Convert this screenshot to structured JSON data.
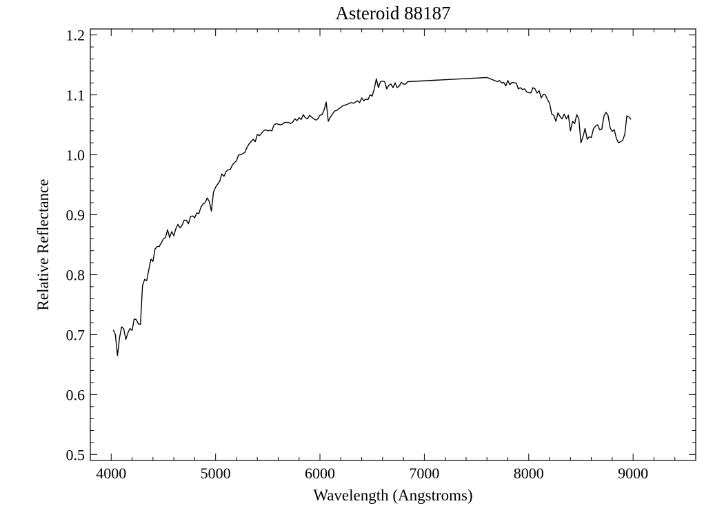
{
  "chart_data": {
    "type": "line",
    "title": "Asteroid 88187",
    "xlabel": "Wavelength (Angstroms)",
    "ylabel": "Relative Reflectance",
    "xlim": [
      3800,
      9600
    ],
    "ylim": [
      0.49,
      1.21
    ],
    "x_major_ticks": [
      4000,
      5000,
      6000,
      7000,
      8000,
      9000
    ],
    "x_tick_labels": [
      "4000",
      "5000",
      "6000",
      "7000",
      "8000",
      "9000"
    ],
    "x_minor_step": 200,
    "y_major_ticks": [
      0.5,
      0.6,
      0.7,
      0.8,
      0.9,
      1.0,
      1.1,
      1.2
    ],
    "y_tick_labels": [
      "0.5",
      "0.6",
      "0.7",
      "0.8",
      "0.9",
      "1.0",
      "1.1",
      "1.2"
    ],
    "y_minor_step": 0.02,
    "grid": false,
    "legend": "none",
    "series": [
      {
        "color": "#000000",
        "points": [
          [
            4020,
            0.708
          ],
          [
            4040,
            0.7
          ],
          [
            4060,
            0.665
          ],
          [
            4080,
            0.695
          ],
          [
            4100,
            0.713
          ],
          [
            4120,
            0.71
          ],
          [
            4140,
            0.692
          ],
          [
            4160,
            0.703
          ],
          [
            4180,
            0.71
          ],
          [
            4200,
            0.707
          ],
          [
            4220,
            0.726
          ],
          [
            4240,
            0.725
          ],
          [
            4260,
            0.718
          ],
          [
            4280,
            0.717
          ],
          [
            4300,
            0.782
          ],
          [
            4320,
            0.792
          ],
          [
            4340,
            0.79
          ],
          [
            4360,
            0.808
          ],
          [
            4380,
            0.826
          ],
          [
            4400,
            0.822
          ],
          [
            4420,
            0.843
          ],
          [
            4440,
            0.847
          ],
          [
            4460,
            0.847
          ],
          [
            4480,
            0.853
          ],
          [
            4500,
            0.86
          ],
          [
            4520,
            0.862
          ],
          [
            4540,
            0.875
          ],
          [
            4560,
            0.862
          ],
          [
            4580,
            0.872
          ],
          [
            4600,
            0.865
          ],
          [
            4620,
            0.877
          ],
          [
            4640,
            0.884
          ],
          [
            4660,
            0.878
          ],
          [
            4680,
            0.883
          ],
          [
            4700,
            0.891
          ],
          [
            4720,
            0.891
          ],
          [
            4740,
            0.885
          ],
          [
            4760,
            0.897
          ],
          [
            4780,
            0.898
          ],
          [
            4800,
            0.895
          ],
          [
            4820,
            0.903
          ],
          [
            4840,
            0.902
          ],
          [
            4860,
            0.913
          ],
          [
            4880,
            0.918
          ],
          [
            4900,
            0.92
          ],
          [
            4920,
            0.928
          ],
          [
            4940,
            0.922
          ],
          [
            4960,
            0.906
          ],
          [
            4980,
            0.938
          ],
          [
            5000,
            0.946
          ],
          [
            5020,
            0.951
          ],
          [
            5040,
            0.956
          ],
          [
            5060,
            0.968
          ],
          [
            5080,
            0.964
          ],
          [
            5100,
            0.972
          ],
          [
            5120,
            0.975
          ],
          [
            5140,
            0.975
          ],
          [
            5160,
            0.983
          ],
          [
            5180,
            0.987
          ],
          [
            5200,
            0.99
          ],
          [
            5220,
            1.0
          ],
          [
            5240,
            1.0
          ],
          [
            5260,
            1.002
          ],
          [
            5280,
            1.004
          ],
          [
            5300,
            1.012
          ],
          [
            5320,
            1.018
          ],
          [
            5340,
            1.022
          ],
          [
            5360,
            1.026
          ],
          [
            5380,
            1.022
          ],
          [
            5400,
            1.034
          ],
          [
            5420,
            1.032
          ],
          [
            5440,
            1.036
          ],
          [
            5460,
            1.04
          ],
          [
            5480,
            1.042
          ],
          [
            5500,
            1.04
          ],
          [
            5520,
            1.041
          ],
          [
            5540,
            1.04
          ],
          [
            5560,
            1.05
          ],
          [
            5580,
            1.052
          ],
          [
            5600,
            1.051
          ],
          [
            5620,
            1.05
          ],
          [
            5640,
            1.051
          ],
          [
            5660,
            1.054
          ],
          [
            5680,
            1.054
          ],
          [
            5700,
            1.054
          ],
          [
            5720,
            1.052
          ],
          [
            5740,
            1.055
          ],
          [
            5760,
            1.06
          ],
          [
            5780,
            1.057
          ],
          [
            5800,
            1.062
          ],
          [
            5820,
            1.059
          ],
          [
            5840,
            1.067
          ],
          [
            5860,
            1.062
          ],
          [
            5880,
            1.06
          ],
          [
            5900,
            1.066
          ],
          [
            5920,
            1.063
          ],
          [
            5940,
            1.06
          ],
          [
            5960,
            1.058
          ],
          [
            5980,
            1.06
          ],
          [
            6000,
            1.066
          ],
          [
            6020,
            1.067
          ],
          [
            6040,
            1.075
          ],
          [
            6060,
            1.088
          ],
          [
            6080,
            1.056
          ],
          [
            6100,
            1.063
          ],
          [
            6120,
            1.068
          ],
          [
            6140,
            1.073
          ],
          [
            6160,
            1.074
          ],
          [
            6180,
            1.077
          ],
          [
            6200,
            1.079
          ],
          [
            6220,
            1.082
          ],
          [
            6240,
            1.083
          ],
          [
            6260,
            1.084
          ],
          [
            6280,
            1.086
          ],
          [
            6300,
            1.087
          ],
          [
            6320,
            1.086
          ],
          [
            6340,
            1.088
          ],
          [
            6360,
            1.09
          ],
          [
            6380,
            1.087
          ],
          [
            6400,
            1.095
          ],
          [
            6420,
            1.09
          ],
          [
            6440,
            1.093
          ],
          [
            6460,
            1.092
          ],
          [
            6480,
            1.1
          ],
          [
            6500,
            1.098
          ],
          [
            6520,
            1.11
          ],
          [
            6540,
            1.127
          ],
          [
            6560,
            1.112
          ],
          [
            6580,
            1.122
          ],
          [
            6600,
            1.123
          ],
          [
            6620,
            1.122
          ],
          [
            6640,
            1.11
          ],
          [
            6660,
            1.116
          ],
          [
            6680,
            1.118
          ],
          [
            6700,
            1.112
          ],
          [
            6720,
            1.12
          ],
          [
            6740,
            1.112
          ],
          [
            6760,
            1.115
          ],
          [
            6780,
            1.121
          ],
          [
            6800,
            1.118
          ],
          [
            6820,
            1.118
          ],
          [
            6840,
            1.122
          ],
          [
            7600,
            1.129
          ],
          [
            7700,
            1.122
          ],
          [
            7720,
            1.124
          ],
          [
            7740,
            1.12
          ],
          [
            7760,
            1.121
          ],
          [
            7780,
            1.115
          ],
          [
            7800,
            1.124
          ],
          [
            7820,
            1.117
          ],
          [
            7840,
            1.121
          ],
          [
            7860,
            1.12
          ],
          [
            7880,
            1.12
          ],
          [
            7900,
            1.11
          ],
          [
            7920,
            1.112
          ],
          [
            7940,
            1.109
          ],
          [
            7960,
            1.11
          ],
          [
            7980,
            1.105
          ],
          [
            8000,
            1.104
          ],
          [
            8020,
            1.103
          ],
          [
            8040,
            1.112
          ],
          [
            8060,
            1.11
          ],
          [
            8080,
            1.103
          ],
          [
            8100,
            1.107
          ],
          [
            8120,
            1.095
          ],
          [
            8140,
            1.101
          ],
          [
            8160,
            1.1
          ],
          [
            8180,
            1.092
          ],
          [
            8200,
            1.086
          ],
          [
            8220,
            1.068
          ],
          [
            8240,
            1.066
          ],
          [
            8260,
            1.056
          ],
          [
            8280,
            1.07
          ],
          [
            8300,
            1.064
          ],
          [
            8320,
            1.06
          ],
          [
            8340,
            1.068
          ],
          [
            8360,
            1.06
          ],
          [
            8380,
            1.066
          ],
          [
            8400,
            1.04
          ],
          [
            8420,
            1.056
          ],
          [
            8440,
            1.052
          ],
          [
            8460,
            1.067
          ],
          [
            8480,
            1.06
          ],
          [
            8500,
            1.02
          ],
          [
            8520,
            1.03
          ],
          [
            8540,
            1.044
          ],
          [
            8560,
            1.026
          ],
          [
            8580,
            1.03
          ],
          [
            8600,
            1.029
          ],
          [
            8620,
            1.043
          ],
          [
            8640,
            1.048
          ],
          [
            8660,
            1.05
          ],
          [
            8680,
            1.042
          ],
          [
            8700,
            1.043
          ],
          [
            8720,
            1.064
          ],
          [
            8740,
            1.071
          ],
          [
            8760,
            1.066
          ],
          [
            8780,
            1.045
          ],
          [
            8800,
            1.039
          ],
          [
            8820,
            1.042
          ],
          [
            8840,
            1.027
          ],
          [
            8860,
            1.02
          ],
          [
            8880,
            1.022
          ],
          [
            8900,
            1.024
          ],
          [
            8920,
            1.034
          ],
          [
            8940,
            1.065
          ],
          [
            8960,
            1.063
          ],
          [
            8980,
            1.059
          ]
        ]
      }
    ]
  }
}
